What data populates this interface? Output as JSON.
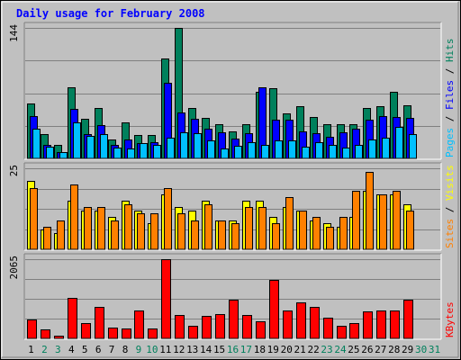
{
  "title": "Daily usage for February 2008",
  "colors": {
    "frame_bg": "#c0c0c0",
    "title": "#0000ff",
    "hits": "#00805c",
    "files": "#0000ff",
    "pages": "#00c0ff",
    "visits": "#ffff00",
    "sites": "#ff8000",
    "kbytes": "#ff0000",
    "weekend_day": "#00805c",
    "weekday": "#000000"
  },
  "chart_data": [
    {
      "type": "bar",
      "name": "hits-files-pages",
      "ylim": [
        0,
        144
      ],
      "y_max_label": "144",
      "legend": [
        {
          "text": "Pages",
          "color": "#00c0ff"
        },
        {
          "text": "Files",
          "color": "#0000ff"
        },
        {
          "text": "Hits",
          "color": "#00805c"
        }
      ],
      "categories": [
        "1",
        "2",
        "3",
        "4",
        "5",
        "6",
        "7",
        "8",
        "9",
        "10",
        "11",
        "12",
        "13",
        "14",
        "15",
        "16",
        "17",
        "18",
        "19",
        "20",
        "21",
        "22",
        "23",
        "24",
        "25",
        "26",
        "27",
        "28",
        "29"
      ],
      "series": [
        {
          "name": "Hits",
          "values": [
            61,
            27,
            15,
            78,
            44,
            56,
            21,
            40,
            26,
            26,
            110,
            144,
            56,
            45,
            38,
            30,
            38,
            73,
            77,
            50,
            58,
            46,
            38,
            38,
            38,
            56,
            58,
            73,
            59
          ]
        },
        {
          "name": "Files",
          "values": [
            47,
            15,
            7,
            55,
            27,
            37,
            15,
            21,
            17,
            18,
            83,
            51,
            44,
            33,
            29,
            22,
            28,
            78,
            43,
            43,
            30,
            28,
            24,
            29,
            33,
            43,
            47,
            46,
            45
          ]
        },
        {
          "name": "Pages",
          "values": [
            33,
            13,
            7,
            40,
            25,
            27,
            12,
            11,
            17,
            15,
            23,
            29,
            28,
            20,
            11,
            14,
            18,
            15,
            20,
            20,
            13,
            18,
            15,
            12,
            15,
            21,
            23,
            35,
            27
          ]
        }
      ]
    },
    {
      "type": "bar",
      "name": "visits-sites",
      "ylim": [
        0,
        25
      ],
      "y_max_label": "25",
      "legend": [
        {
          "text": "Sites",
          "color": "#ff8000"
        },
        {
          "text": "Visits",
          "color": "#ffff00"
        }
      ],
      "categories": [
        "1",
        "2",
        "3",
        "4",
        "5",
        "6",
        "7",
        "8",
        "9",
        "10",
        "11",
        "12",
        "13",
        "14",
        "15",
        "16",
        "17",
        "18",
        "19",
        "20",
        "21",
        "22",
        "23",
        "24",
        "25",
        "26",
        "27",
        "28",
        "29"
      ],
      "series": [
        {
          "name": "Visits",
          "values": [
            21,
            6,
            5,
            15,
            12,
            12,
            10,
            15,
            12,
            8,
            17,
            13,
            12,
            15,
            9,
            9,
            15,
            15,
            10,
            13,
            12,
            9,
            8,
            7,
            10,
            18,
            17,
            17,
            14
          ]
        },
        {
          "name": "Sites",
          "values": [
            19,
            7,
            9,
            20,
            13,
            13,
            9,
            14,
            11,
            11,
            19,
            11,
            9,
            14,
            9,
            8,
            13,
            13,
            8,
            16,
            12,
            10,
            7,
            10,
            18,
            24,
            17,
            18,
            12
          ]
        }
      ]
    },
    {
      "type": "bar",
      "name": "kbytes",
      "ylim": [
        0,
        2065
      ],
      "y_max_label": "2065",
      "legend": [
        {
          "text": "KBytes",
          "color": "#ff0000"
        }
      ],
      "categories": [
        "1",
        "2",
        "3",
        "4",
        "5",
        "6",
        "7",
        "8",
        "9",
        "10",
        "11",
        "12",
        "13",
        "14",
        "15",
        "16",
        "17",
        "18",
        "19",
        "20",
        "21",
        "22",
        "23",
        "24",
        "25",
        "26",
        "27",
        "28",
        "29"
      ],
      "series": [
        {
          "name": "KBytes",
          "values": [
            500,
            240,
            80,
            1050,
            400,
            820,
            270,
            250,
            730,
            260,
            2065,
            600,
            320,
            580,
            640,
            1020,
            610,
            440,
            1530,
            730,
            950,
            830,
            550,
            340,
            390,
            700,
            730,
            720,
            1010
          ]
        }
      ]
    }
  ],
  "x_axis": {
    "labels": [
      "1",
      "2",
      "3",
      "4",
      "5",
      "6",
      "7",
      "8",
      "9",
      "10",
      "11",
      "12",
      "13",
      "14",
      "15",
      "16",
      "17",
      "18",
      "19",
      "20",
      "21",
      "22",
      "23",
      "24",
      "25",
      "26",
      "27",
      "28",
      "29",
      "30",
      "31"
    ],
    "weekend_days": [
      2,
      3,
      9,
      10,
      16,
      17,
      23,
      24,
      30,
      31
    ]
  }
}
